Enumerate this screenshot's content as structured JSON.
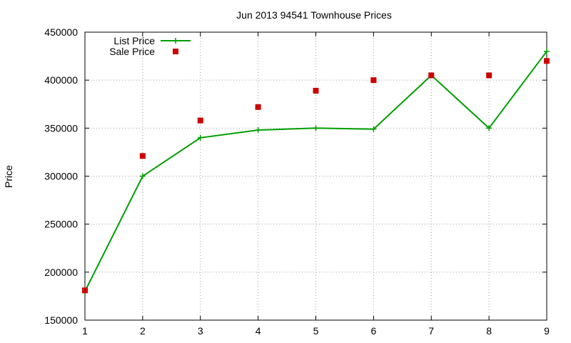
{
  "chart_data": {
    "type": "line",
    "title": "Jun 2013 94541 Townhouse Prices",
    "xlabel": "",
    "ylabel": "Price",
    "x": [
      1,
      2,
      3,
      4,
      5,
      6,
      7,
      8,
      9
    ],
    "xlim": [
      1,
      9
    ],
    "ylim": [
      150000,
      450000
    ],
    "xticks": [
      "1",
      "2",
      "3",
      "4",
      "5",
      "6",
      "7",
      "8",
      "9"
    ],
    "yticks": [
      "150000",
      "200000",
      "250000",
      "300000",
      "350000",
      "400000",
      "450000"
    ],
    "grid": true,
    "legend_position": "top-left",
    "series": [
      {
        "name": "List Price",
        "style": "line-with-plus-markers",
        "color": "#009e00",
        "values": [
          180000,
          300000,
          340000,
          348000,
          350000,
          349000,
          405000,
          350000,
          430000
        ]
      },
      {
        "name": "Sale Price",
        "style": "square-markers",
        "color": "#cc0000",
        "values": [
          181000,
          321000,
          358000,
          372000,
          389000,
          400000,
          405000,
          405000,
          420000
        ]
      }
    ]
  }
}
